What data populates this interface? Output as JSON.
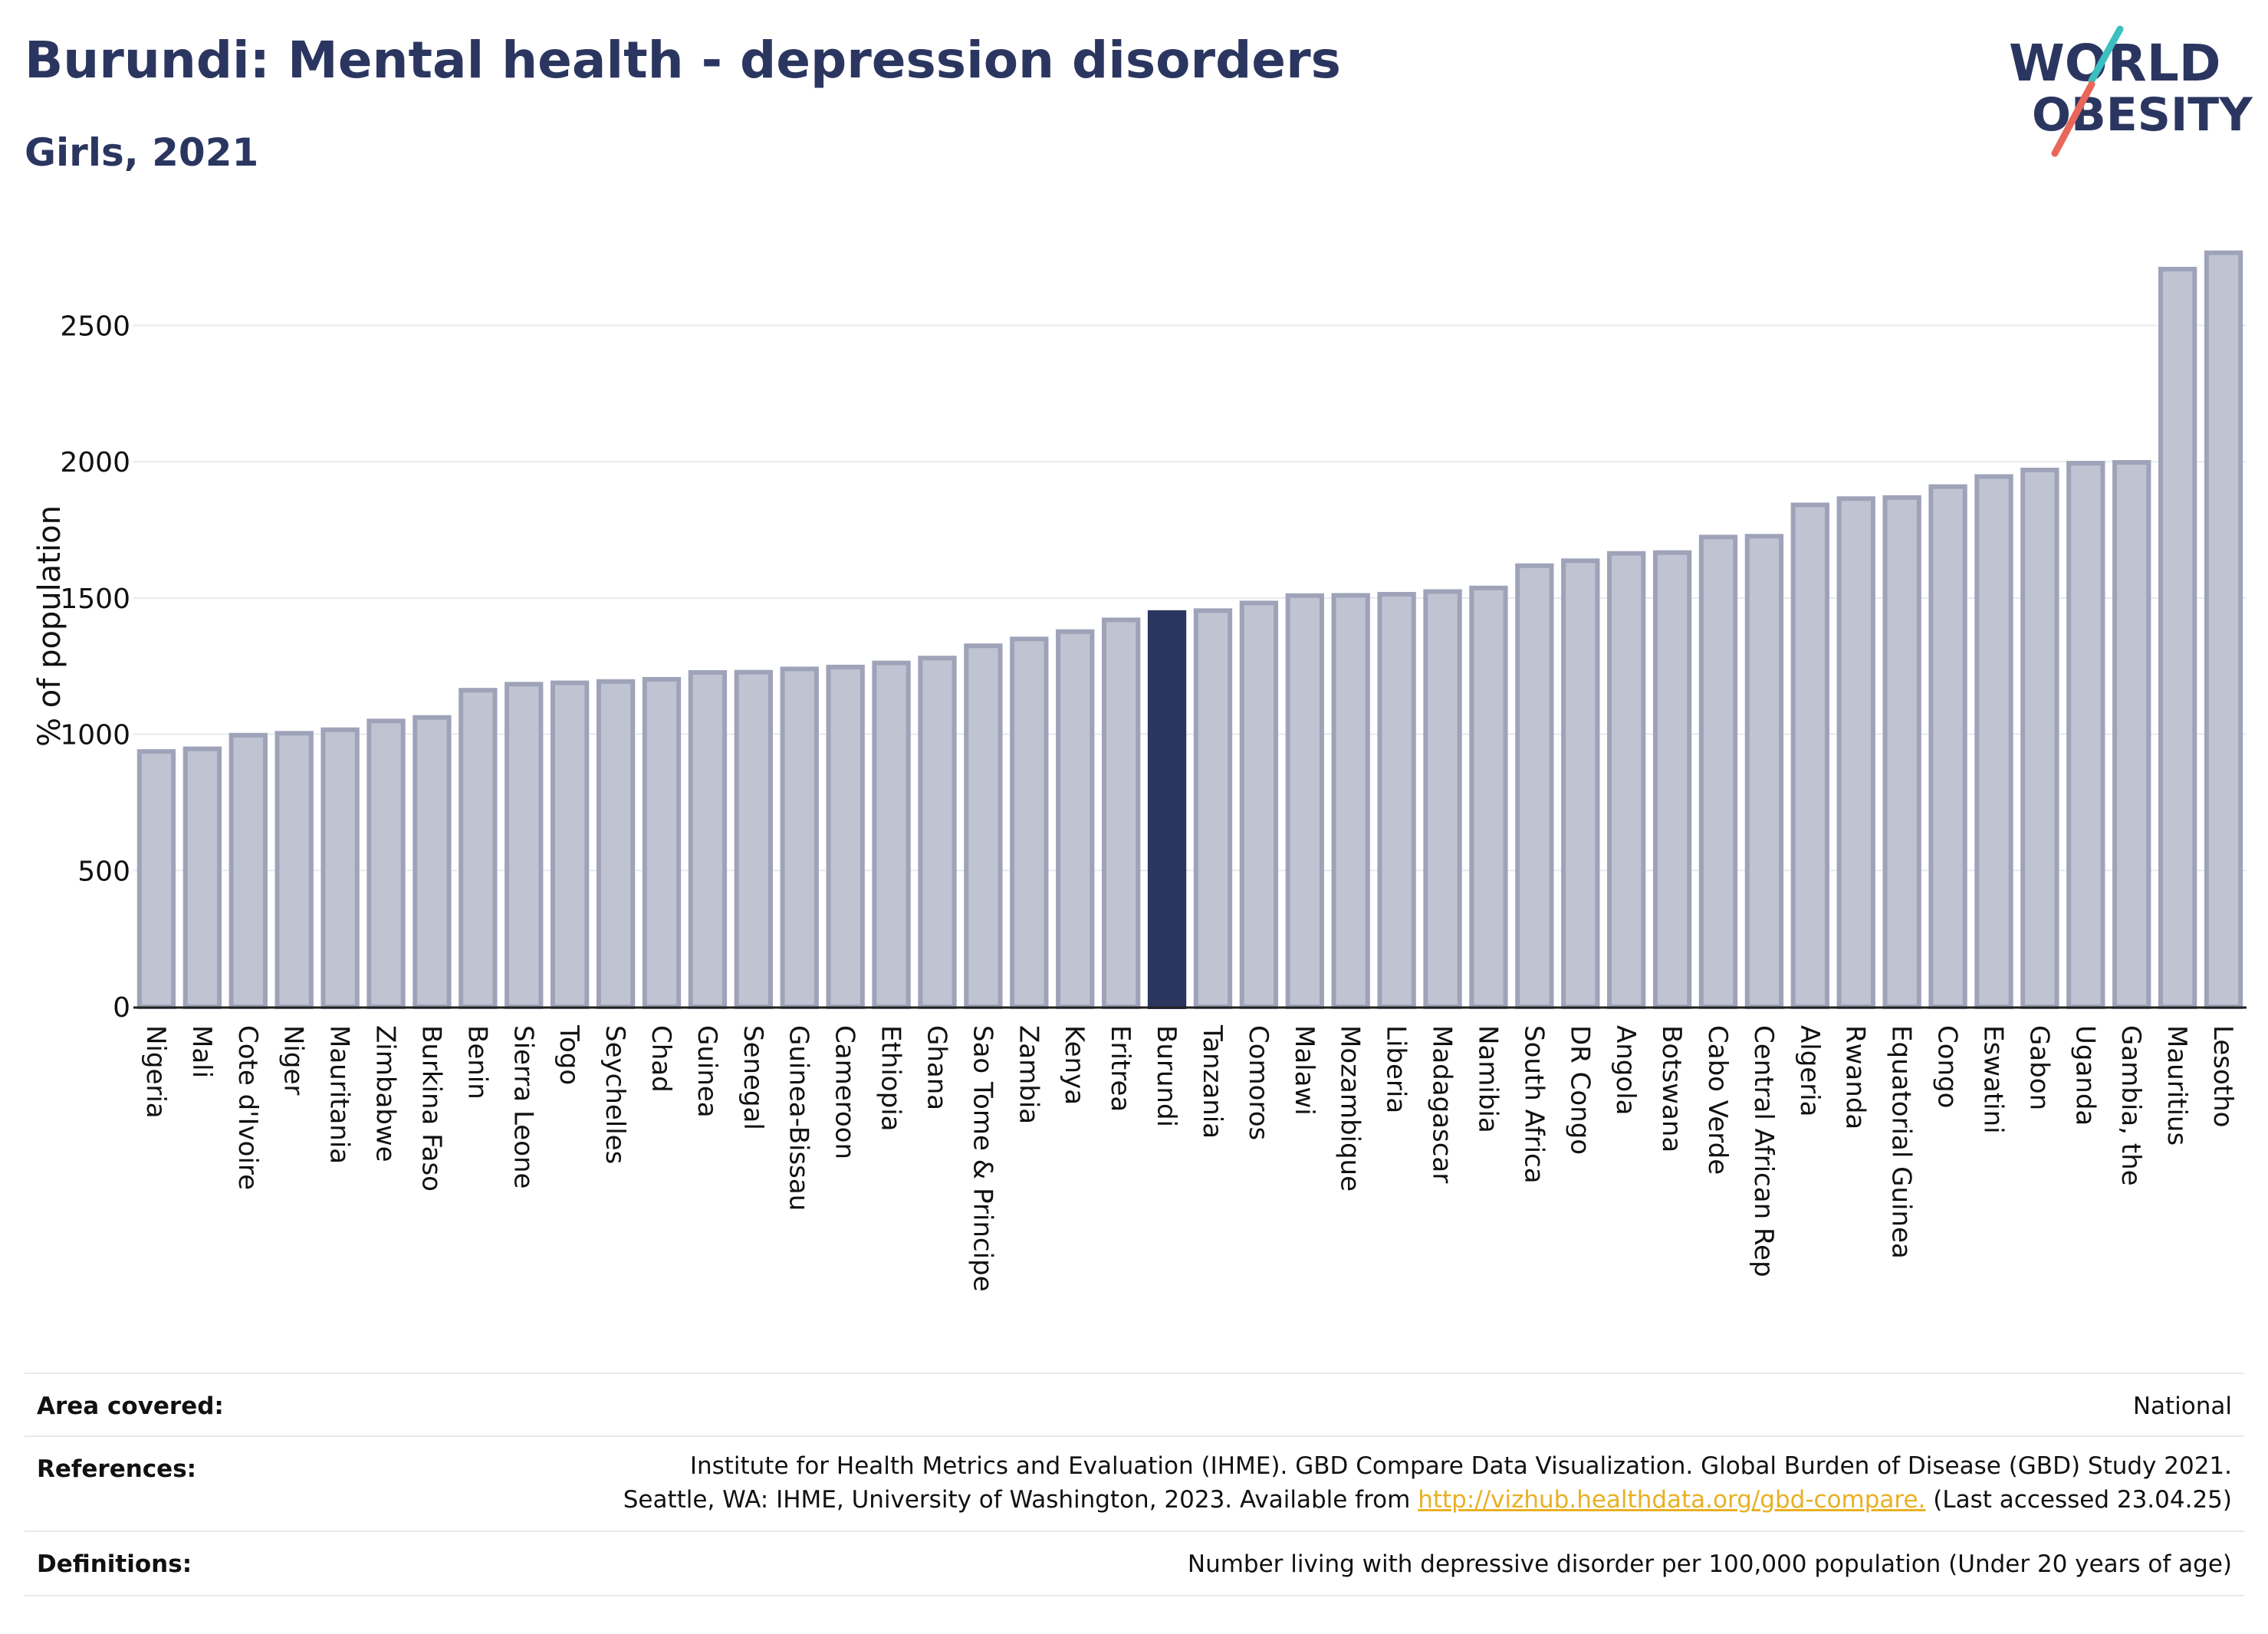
{
  "header": {
    "title": "Burundi: Mental health - depression disorders",
    "subtitle": "Girls, 2021"
  },
  "logo": {
    "line1": "WORLD",
    "line2": "OBESITY",
    "accent_teal": "#3bbfbf",
    "accent_red": "#e8675a"
  },
  "colors": {
    "bar": "#c0c3d1",
    "bar_border": "#9ea3b9",
    "highlight": "#2b3660",
    "grid": "#e8eaee"
  },
  "chart_data": {
    "type": "bar",
    "ylabel": "% of population",
    "ylim": [
      0,
      2850
    ],
    "yticks": [
      0,
      500,
      1000,
      1500,
      2000,
      2500
    ],
    "grid": true,
    "highlight": "Burundi",
    "categories": [
      "Nigeria",
      "Mali",
      "Cote d'Ivoire",
      "Niger",
      "Mauritania",
      "Zimbabwe",
      "Burkina Faso",
      "Benin",
      "Sierra Leone",
      "Togo",
      "Seychelles",
      "Chad",
      "Guinea",
      "Senegal",
      "Guinea-Bissau",
      "Cameroon",
      "Ethiopia",
      "Ghana",
      "Sao Tome & Principe",
      "Zambia",
      "Kenya",
      "Eritrea",
      "Burundi",
      "Tanzania",
      "Comoros",
      "Malawi",
      "Mozambique",
      "Liberia",
      "Madagascar",
      "Namibia",
      "South Africa",
      "DR Congo",
      "Angola",
      "Botswana",
      "Cabo Verde",
      "Central African Rep",
      "Algeria",
      "Rwanda",
      "Equatorial Guinea",
      "Congo",
      "Eswatini",
      "Gabon",
      "Uganda",
      "Gambia, the",
      "Mauritius",
      "Lesotho"
    ],
    "values": [
      945,
      955,
      1005,
      1012,
      1025,
      1057,
      1070,
      1170,
      1192,
      1197,
      1202,
      1210,
      1235,
      1236,
      1248,
      1255,
      1270,
      1288,
      1333,
      1358,
      1385,
      1428,
      1455,
      1462,
      1490,
      1517,
      1518,
      1522,
      1532,
      1545,
      1627,
      1645,
      1672,
      1675,
      1732,
      1735,
      1850,
      1873,
      1877,
      1917,
      1954,
      1978,
      2003,
      2006,
      2715,
      2775
    ]
  },
  "footer": {
    "area_label": "Area covered:",
    "area_value": "National",
    "references_label": "References:",
    "references_line1": "Institute for Health Metrics and Evaluation (IHME). GBD Compare Data Visualization. Global Burden of Disease (GBD) Study 2021.",
    "references_line2_pre": "Seattle, WA: IHME, University of Washington, 2023. Available from",
    "references_link": "http://vizhub.healthdata.org/gbd-compare.",
    "references_line2_post": "(Last accessed 23.04.25)",
    "definitions_label": "Definitions:",
    "definitions_value": "Number living with depressive disorder per 100,000 population (Under 20 years of age)"
  }
}
